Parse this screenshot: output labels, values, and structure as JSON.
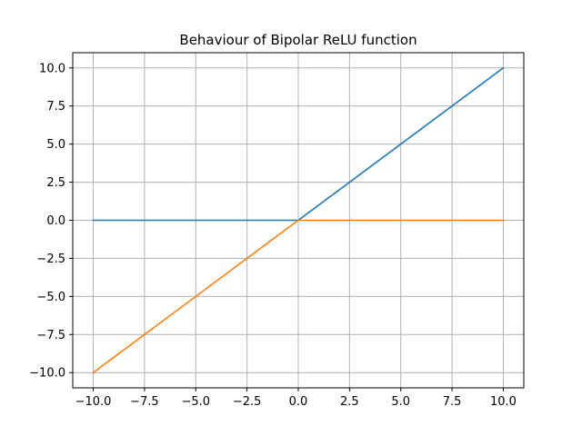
{
  "chart_data": {
    "type": "line",
    "title": "Behaviour of Bipolar ReLU function",
    "xlabel": "",
    "ylabel": "",
    "xlim": [
      -11,
      11
    ],
    "ylim": [
      -11,
      11
    ],
    "x_ticks": [
      -10,
      -7.5,
      -5,
      -2.5,
      0,
      2.5,
      5,
      7.5,
      10
    ],
    "x_tick_labels": [
      "−10.0",
      "−7.5",
      "−5.0",
      "−2.5",
      "0.0",
      "2.5",
      "5.0",
      "7.5",
      "10.0"
    ],
    "y_ticks": [
      -10,
      -7.5,
      -5,
      -2.5,
      0,
      2.5,
      5,
      7.5,
      10
    ],
    "y_tick_labels": [
      "−10.0",
      "−7.5",
      "−5.0",
      "−2.5",
      "0.0",
      "2.5",
      "5.0",
      "7.5",
      "10.0"
    ],
    "grid": true,
    "legend": "none",
    "series": [
      {
        "color": "#1f77b4",
        "x": [
          -10,
          0,
          10
        ],
        "y": [
          0,
          0,
          10
        ]
      },
      {
        "color": "#ff7f0e",
        "x": [
          -10,
          0,
          10
        ],
        "y": [
          -10,
          0,
          0
        ]
      }
    ]
  }
}
